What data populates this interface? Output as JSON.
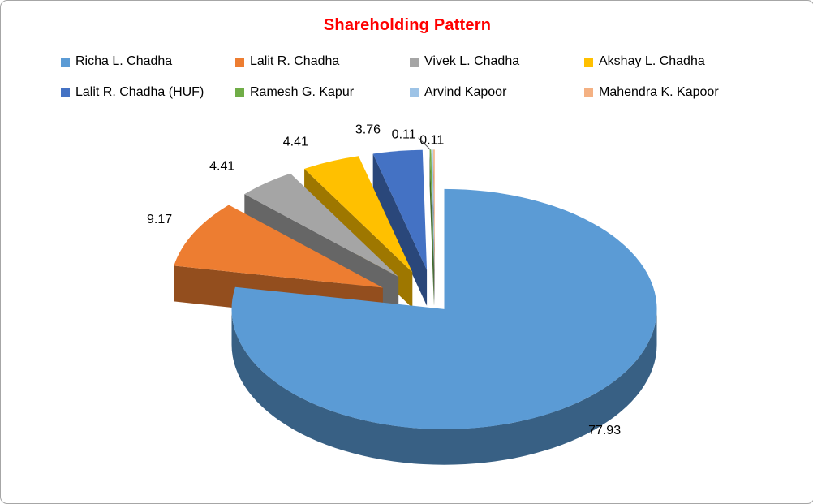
{
  "chart_data": {
    "type": "pie",
    "variant": "3d-exploded",
    "title": "Shareholding Pattern",
    "title_color": "#FF0000",
    "legend_position": "top",
    "data_labels": "outside-end",
    "slices": [
      {
        "name": "Richa L. Chadha",
        "value": 77.93,
        "label": "77.93",
        "color": "#5B9BD5"
      },
      {
        "name": "Lalit R. Chadha",
        "value": 9.17,
        "label": "9.17",
        "color": "#ED7D31"
      },
      {
        "name": "Vivek L. Chadha",
        "value": 4.41,
        "label": "4.41",
        "color": "#A5A5A5"
      },
      {
        "name": "Akshay L. Chadha",
        "value": 4.41,
        "label": "4.41",
        "color": "#FFC000"
      },
      {
        "name": "Lalit R. Chadha (HUF)",
        "value": 3.76,
        "label": "3.76",
        "color": "#4472C4"
      },
      {
        "name": "Ramesh G. Kapur",
        "value": 0.11,
        "label": "0.11",
        "color": "#70AD47"
      },
      {
        "name": "Arvind Kapoor",
        "value": 0.11,
        "label": "0.11",
        "color": "#9DC3E6"
      },
      {
        "name": "Mahendra K. Kapoor",
        "value": 0.1,
        "label": "",
        "color": "#F4B183"
      }
    ]
  }
}
